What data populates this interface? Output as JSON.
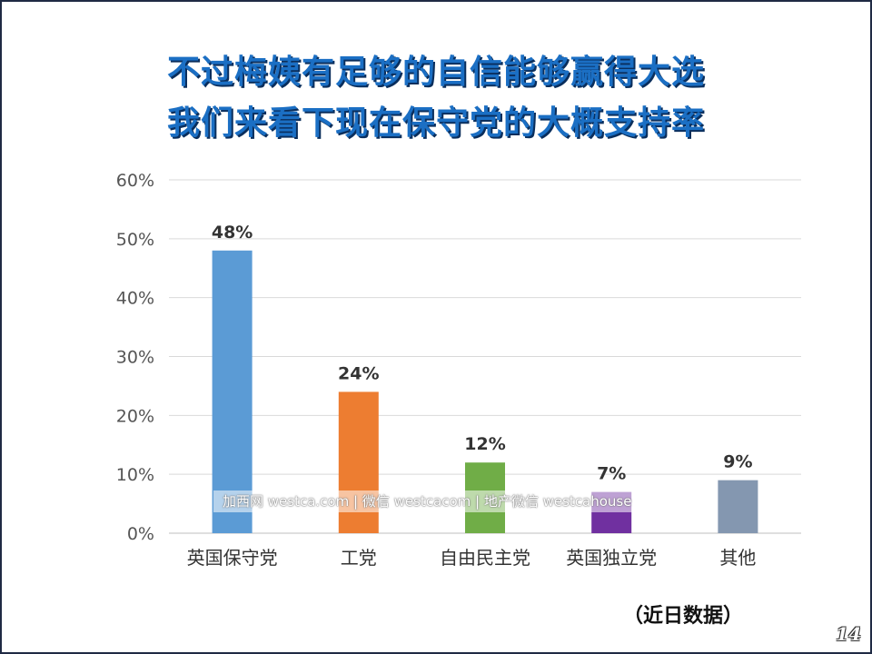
{
  "title": {
    "line1": "不过梅姨有足够的自信能够赢得大选",
    "line2": "我们来看下现在保守党的大概支持率"
  },
  "chart_data": {
    "type": "bar",
    "categories": [
      "英国保守党",
      "工党",
      "自由民主党",
      "英国独立党",
      "其他"
    ],
    "values": [
      48,
      24,
      12,
      7,
      9
    ],
    "value_labels": [
      "48%",
      "24%",
      "12%",
      "7%",
      "9%"
    ],
    "colors": [
      "#5b9bd5",
      "#ed7d31",
      "#70ad47",
      "#7030a0",
      "#8497b0"
    ],
    "ylim": [
      0,
      60
    ],
    "yticks": [
      0,
      10,
      20,
      30,
      40,
      50,
      60
    ],
    "ytick_labels": [
      "0%",
      "10%",
      "20%",
      "30%",
      "40%",
      "50%",
      "60%"
    ],
    "grid": true,
    "xlabel": "",
    "ylabel": ""
  },
  "watermark": "加西网 westca.com | 微信 westcacom | 地产微信 westcahouse",
  "note": "（近日数据）",
  "page_number": "14"
}
